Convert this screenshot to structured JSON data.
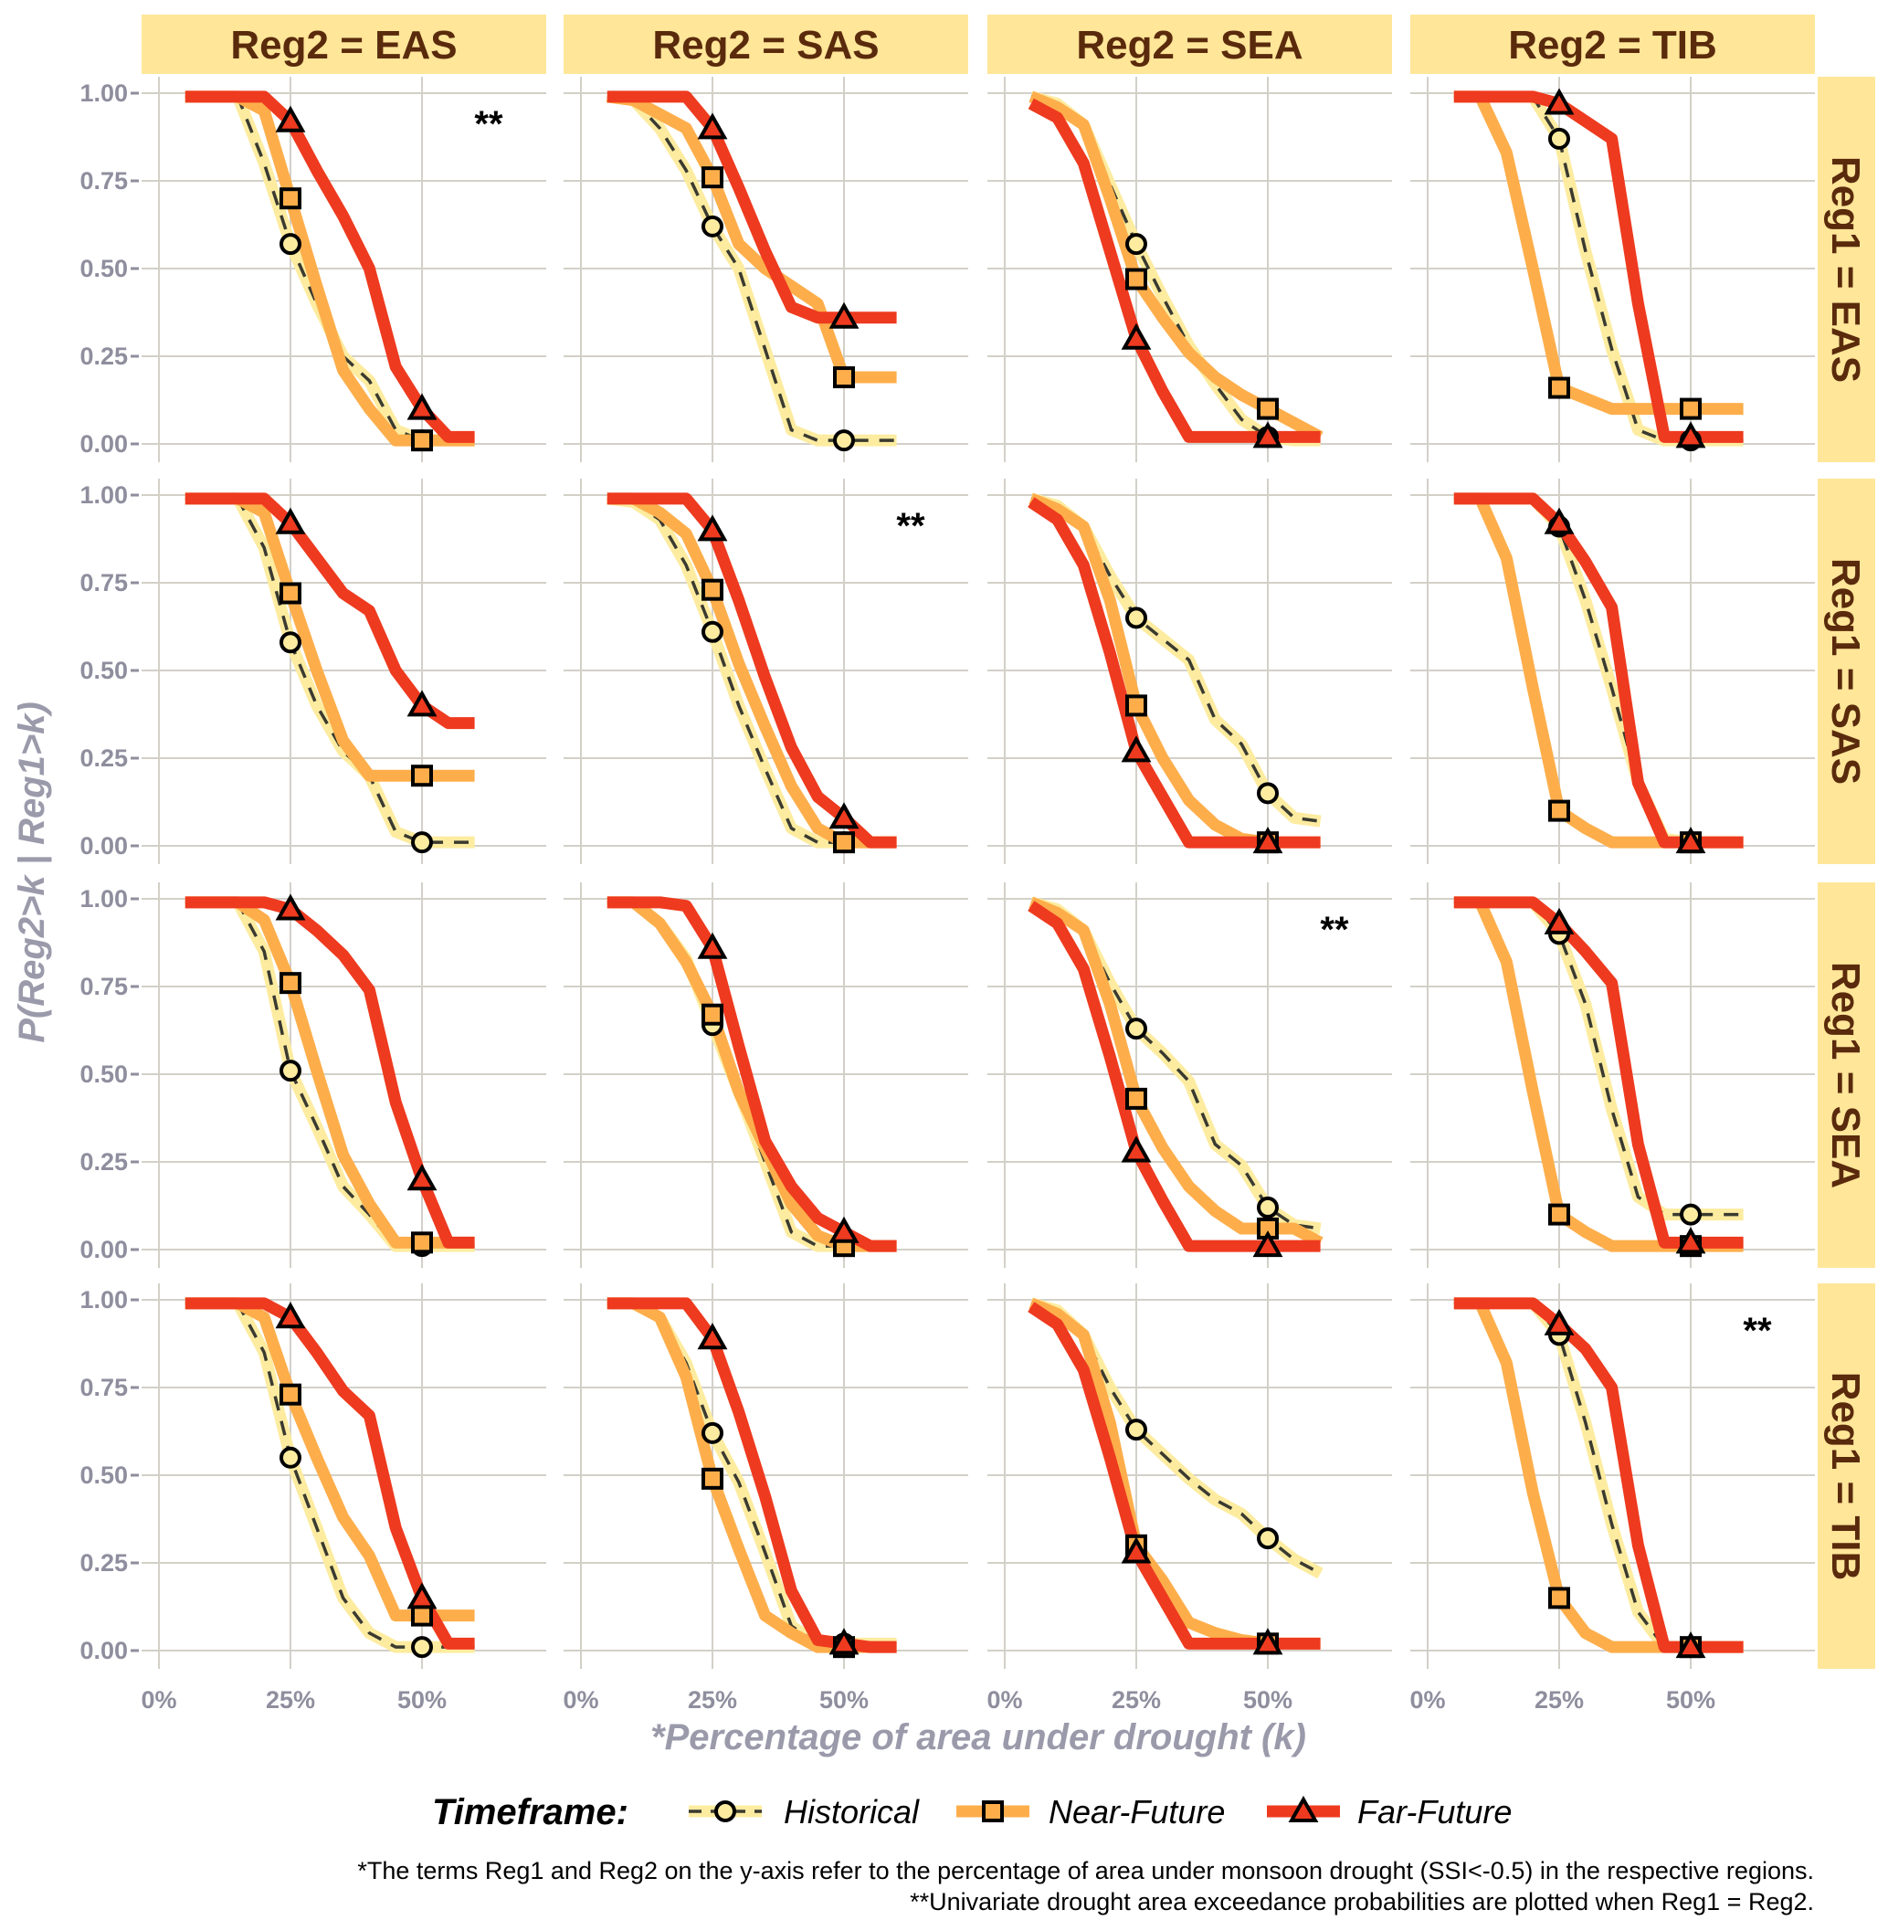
{
  "chart_data": {
    "type": "line",
    "xlabel": "*Percentage of area under drought (k)",
    "ylabel": "P(Reg2>k | Reg1>k)",
    "x": [
      5,
      10,
      15,
      20,
      25,
      30,
      35,
      40,
      45,
      50,
      55,
      60
    ],
    "marker_x": [
      25,
      50
    ],
    "xticks": [
      0,
      25,
      50
    ],
    "xtick_labels": [
      "0%",
      "25%",
      "50%"
    ],
    "yticks": [
      0,
      0.25,
      0.5,
      0.75,
      1
    ],
    "ytick_labels": [
      "0.00",
      "0.25",
      "0.50",
      "0.75",
      "1.00"
    ],
    "xlim": [
      0,
      60
    ],
    "ylim": [
      0,
      1
    ],
    "grid": true,
    "col_strips": [
      "Reg2 = EAS",
      "Reg2 = SAS",
      "Reg2 = SEA",
      "Reg2 = TIB"
    ],
    "row_strips": [
      "Reg1 = EAS",
      "Reg1 = SAS",
      "Reg1 = SEA",
      "Reg1 = TIB"
    ],
    "univariate_mark": "**",
    "legend": {
      "title": "Timeframe:",
      "placement": "bottom",
      "series": [
        {
          "name": "Historical",
          "color": "#fdeca0",
          "marker": "circle",
          "dashed": true
        },
        {
          "name": "Near-Future",
          "color": "#fdae4b",
          "marker": "square",
          "dashed": false
        },
        {
          "name": "Far-Future",
          "color": "#ee3a1f",
          "marker": "triangle",
          "dashed": false
        }
      ]
    },
    "panels": [
      {
        "row": 0,
        "col": 0,
        "univariate": true,
        "series": [
          [
            0.99,
            0.99,
            0.99,
            0.8,
            0.57,
            0.4,
            0.25,
            0.18,
            0.04,
            0.01,
            0.01,
            0.01
          ],
          [
            0.99,
            0.99,
            0.99,
            0.95,
            0.7,
            0.45,
            0.21,
            0.1,
            0.01,
            0.01,
            0.01,
            0.01
          ],
          [
            0.99,
            0.99,
            0.99,
            0.99,
            0.92,
            0.78,
            0.65,
            0.5,
            0.22,
            0.1,
            0.02,
            0.02
          ]
        ]
      },
      {
        "row": 0,
        "col": 1,
        "univariate": false,
        "series": [
          [
            0.99,
            0.98,
            0.9,
            0.78,
            0.62,
            0.5,
            0.27,
            0.04,
            0.01,
            0.01,
            0.01,
            0.01
          ],
          [
            0.99,
            0.98,
            0.94,
            0.9,
            0.76,
            0.57,
            0.5,
            0.45,
            0.4,
            0.19,
            0.19,
            0.19
          ],
          [
            0.99,
            0.99,
            0.99,
            0.99,
            0.9,
            0.73,
            0.55,
            0.39,
            0.36,
            0.36,
            0.36,
            0.36
          ]
        ]
      },
      {
        "row": 0,
        "col": 2,
        "univariate": false,
        "series": [
          [
            0.99,
            0.97,
            0.91,
            0.74,
            0.57,
            0.42,
            0.28,
            0.17,
            0.07,
            0.02,
            0.01,
            0.01
          ],
          [
            0.99,
            0.96,
            0.91,
            0.7,
            0.47,
            0.36,
            0.26,
            0.19,
            0.14,
            0.1,
            0.06,
            0.02
          ],
          [
            0.97,
            0.93,
            0.8,
            0.55,
            0.3,
            0.15,
            0.02,
            0.02,
            0.02,
            0.02,
            0.02,
            0.02
          ]
        ]
      },
      {
        "row": 0,
        "col": 3,
        "univariate": false,
        "series": [
          [
            0.99,
            0.99,
            0.99,
            0.99,
            0.87,
            0.55,
            0.27,
            0.04,
            0.01,
            0.01,
            0.01,
            0.01
          ],
          [
            0.99,
            0.99,
            0.83,
            0.5,
            0.16,
            0.13,
            0.1,
            0.1,
            0.1,
            0.1,
            0.1,
            0.1
          ],
          [
            0.99,
            0.99,
            0.99,
            0.99,
            0.97,
            0.92,
            0.87,
            0.4,
            0.02,
            0.02,
            0.02,
            0.02
          ]
        ]
      },
      {
        "row": 1,
        "col": 0,
        "univariate": false,
        "series": [
          [
            0.99,
            0.99,
            0.99,
            0.85,
            0.58,
            0.4,
            0.27,
            0.2,
            0.04,
            0.01,
            0.01,
            0.01
          ],
          [
            0.99,
            0.99,
            0.99,
            0.95,
            0.72,
            0.5,
            0.3,
            0.2,
            0.2,
            0.2,
            0.2,
            0.2
          ],
          [
            0.99,
            0.99,
            0.99,
            0.99,
            0.92,
            0.82,
            0.72,
            0.67,
            0.5,
            0.4,
            0.35,
            0.35
          ]
        ]
      },
      {
        "row": 1,
        "col": 1,
        "univariate": true,
        "series": [
          [
            0.99,
            0.98,
            0.93,
            0.8,
            0.61,
            0.4,
            0.22,
            0.05,
            0.01,
            0.01,
            0.01,
            0.01
          ],
          [
            0.99,
            0.99,
            0.95,
            0.89,
            0.73,
            0.52,
            0.34,
            0.17,
            0.05,
            0.01,
            0.01,
            0.01
          ],
          [
            0.99,
            0.99,
            0.99,
            0.99,
            0.9,
            0.7,
            0.48,
            0.28,
            0.14,
            0.08,
            0.01,
            0.01
          ]
        ]
      },
      {
        "row": 1,
        "col": 2,
        "univariate": false,
        "series": [
          [
            0.99,
            0.97,
            0.91,
            0.77,
            0.65,
            0.59,
            0.53,
            0.36,
            0.29,
            0.15,
            0.08,
            0.07
          ],
          [
            0.99,
            0.96,
            0.91,
            0.7,
            0.4,
            0.25,
            0.13,
            0.06,
            0.02,
            0.01,
            0.01,
            0.01
          ],
          [
            0.98,
            0.93,
            0.8,
            0.55,
            0.27,
            0.14,
            0.01,
            0.01,
            0.01,
            0.01,
            0.01,
            0.01
          ]
        ]
      },
      {
        "row": 1,
        "col": 3,
        "univariate": false,
        "series": [
          [
            0.99,
            0.99,
            0.99,
            0.99,
            0.91,
            0.7,
            0.45,
            0.18,
            0.02,
            0.01,
            0.01,
            0.01
          ],
          [
            0.99,
            0.99,
            0.82,
            0.45,
            0.1,
            0.05,
            0.01,
            0.01,
            0.01,
            0.01,
            0.01,
            0.01
          ],
          [
            0.99,
            0.99,
            0.99,
            0.99,
            0.92,
            0.81,
            0.68,
            0.18,
            0.01,
            0.01,
            0.01,
            0.01
          ]
        ]
      },
      {
        "row": 2,
        "col": 0,
        "univariate": false,
        "series": [
          [
            0.99,
            0.99,
            0.99,
            0.85,
            0.51,
            0.35,
            0.18,
            0.1,
            0.01,
            0.01,
            0.01,
            0.01
          ],
          [
            0.99,
            0.99,
            0.99,
            0.94,
            0.76,
            0.51,
            0.27,
            0.13,
            0.02,
            0.02,
            0.02,
            0.02
          ],
          [
            0.99,
            0.99,
            0.99,
            0.99,
            0.97,
            0.91,
            0.84,
            0.74,
            0.42,
            0.2,
            0.02,
            0.02
          ]
        ]
      },
      {
        "row": 2,
        "col": 1,
        "univariate": false,
        "series": [
          [
            0.99,
            0.99,
            0.93,
            0.83,
            0.64,
            0.45,
            0.25,
            0.05,
            0.01,
            0.01,
            0.01,
            0.01
          ],
          [
            0.99,
            0.99,
            0.93,
            0.82,
            0.67,
            0.45,
            0.29,
            0.13,
            0.04,
            0.01,
            0.01,
            0.01
          ],
          [
            0.99,
            0.99,
            0.99,
            0.98,
            0.86,
            0.58,
            0.31,
            0.18,
            0.09,
            0.05,
            0.01,
            0.01
          ]
        ]
      },
      {
        "row": 2,
        "col": 2,
        "univariate": true,
        "series": [
          [
            0.99,
            0.97,
            0.91,
            0.76,
            0.63,
            0.56,
            0.48,
            0.3,
            0.24,
            0.12,
            0.07,
            0.06
          ],
          [
            0.99,
            0.96,
            0.91,
            0.7,
            0.43,
            0.29,
            0.18,
            0.11,
            0.06,
            0.06,
            0.06,
            0.02
          ],
          [
            0.98,
            0.93,
            0.8,
            0.55,
            0.28,
            0.14,
            0.01,
            0.01,
            0.01,
            0.01,
            0.01,
            0.01
          ]
        ]
      },
      {
        "row": 2,
        "col": 3,
        "univariate": false,
        "series": [
          [
            0.99,
            0.99,
            0.99,
            0.99,
            0.9,
            0.7,
            0.4,
            0.15,
            0.1,
            0.1,
            0.1,
            0.1
          ],
          [
            0.99,
            0.99,
            0.82,
            0.45,
            0.1,
            0.05,
            0.01,
            0.01,
            0.01,
            0.01,
            0.01,
            0.01
          ],
          [
            0.99,
            0.99,
            0.99,
            0.99,
            0.93,
            0.85,
            0.76,
            0.3,
            0.02,
            0.02,
            0.02,
            0.02
          ]
        ]
      },
      {
        "row": 3,
        "col": 0,
        "univariate": false,
        "series": [
          [
            0.99,
            0.99,
            0.99,
            0.85,
            0.55,
            0.35,
            0.15,
            0.05,
            0.01,
            0.01,
            0.01,
            0.01
          ],
          [
            0.99,
            0.99,
            0.99,
            0.95,
            0.73,
            0.55,
            0.38,
            0.27,
            0.1,
            0.1,
            0.1,
            0.1
          ],
          [
            0.99,
            0.99,
            0.99,
            0.99,
            0.95,
            0.85,
            0.74,
            0.67,
            0.35,
            0.15,
            0.02,
            0.02
          ]
        ]
      },
      {
        "row": 3,
        "col": 1,
        "univariate": false,
        "series": [
          [
            0.99,
            0.99,
            0.95,
            0.82,
            0.62,
            0.48,
            0.28,
            0.07,
            0.02,
            0.02,
            0.02,
            0.02
          ],
          [
            0.99,
            0.99,
            0.95,
            0.78,
            0.49,
            0.29,
            0.1,
            0.05,
            0.01,
            0.01,
            0.01,
            0.01
          ],
          [
            0.99,
            0.99,
            0.99,
            0.99,
            0.89,
            0.68,
            0.44,
            0.17,
            0.03,
            0.02,
            0.01,
            0.01
          ]
        ]
      },
      {
        "row": 3,
        "col": 2,
        "univariate": false,
        "series": [
          [
            0.99,
            0.97,
            0.9,
            0.75,
            0.63,
            0.56,
            0.49,
            0.43,
            0.39,
            0.32,
            0.26,
            0.22
          ],
          [
            0.99,
            0.96,
            0.9,
            0.65,
            0.3,
            0.2,
            0.08,
            0.05,
            0.03,
            0.02,
            0.02,
            0.02
          ],
          [
            0.98,
            0.93,
            0.8,
            0.55,
            0.28,
            0.15,
            0.02,
            0.02,
            0.02,
            0.02,
            0.02,
            0.02
          ]
        ]
      },
      {
        "row": 3,
        "col": 3,
        "univariate": true,
        "series": [
          [
            0.99,
            0.99,
            0.99,
            0.99,
            0.9,
            0.65,
            0.36,
            0.11,
            0.01,
            0.01,
            0.01,
            0.01
          ],
          [
            0.99,
            0.99,
            0.82,
            0.45,
            0.15,
            0.05,
            0.01,
            0.01,
            0.01,
            0.01,
            0.01,
            0.01
          ],
          [
            0.99,
            0.99,
            0.99,
            0.99,
            0.93,
            0.86,
            0.75,
            0.3,
            0.01,
            0.01,
            0.01,
            0.01
          ]
        ]
      }
    ]
  },
  "footnotes": [
    "*The terms Reg1 and Reg2 on the y-axis refer to the percentage of area under monsoon drought (SSI<-0.5) in the respective regions.",
    "**Univariate drought area exceedance probabilities are plotted when Reg1 = Reg2."
  ],
  "colors": {
    "strip_bg": "#ffe699",
    "strip_text": "#5a2a0c",
    "grid": "#d3d0c8",
    "axis_text": "#8e8e9e"
  }
}
